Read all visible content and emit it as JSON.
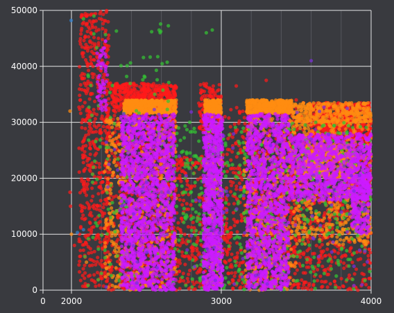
{
  "chart_data": {
    "type": "scatter",
    "title": "",
    "xlabel": "",
    "ylabel": "",
    "xlim": [
      0,
      4000
    ],
    "ylim": [
      0,
      50000
    ],
    "x_major_ticks": [
      0,
      2000,
      3000,
      4000
    ],
    "x_tick_labels": [
      "0",
      "2000",
      "3000",
      "4000"
    ],
    "y_major_ticks": [
      0,
      10000,
      20000,
      30000,
      40000,
      50000
    ],
    "y_tick_labels": [
      "0",
      "10000",
      "20000",
      "30000",
      "40000",
      "50000"
    ],
    "x_minor_gridlines": [
      2200,
      2400,
      2600,
      2800,
      3200,
      3400,
      3600,
      3800
    ],
    "grid": true,
    "legend": "none",
    "colors": {
      "background": "#393a3f",
      "major_grid": "#e8e8e8",
      "minor_grid": "#55575e",
      "tick_label": "#ffffff",
      "red": "#ff1a1a",
      "orange": "#ff8c10",
      "magenta": "#cc1bff",
      "green": "#33c433",
      "purple": "#7a2fd9",
      "blue": "#2f7fd0"
    },
    "series": [
      {
        "color_key": "red",
        "description_points": [
          [
            1900,
            17500
          ],
          [
            1930,
            15000
          ],
          [
            2020,
            8000
          ],
          [
            2060,
            44000
          ],
          [
            2100,
            49000
          ],
          [
            2150,
            48000
          ],
          [
            2180,
            45000
          ],
          [
            2200,
            42000
          ],
          [
            2220,
            40000
          ],
          [
            2260,
            37000
          ],
          [
            2300,
            36500
          ],
          [
            2360,
            35000
          ],
          [
            2420,
            36000
          ],
          [
            2500,
            35500
          ],
          [
            2580,
            36000
          ],
          [
            2640,
            35000
          ],
          [
            2920,
            36000
          ],
          [
            2980,
            34000
          ],
          [
            3100,
            36500
          ],
          [
            3300,
            37500
          ],
          [
            3500,
            34000
          ],
          [
            3700,
            33500
          ],
          [
            3850,
            33000
          ],
          [
            3950,
            32500
          ],
          [
            2240,
            25000
          ],
          [
            2250,
            12000
          ],
          [
            2260,
            3000
          ],
          [
            2650,
            10000
          ],
          [
            2700,
            20000
          ],
          [
            3880,
            26000
          ],
          [
            3900,
            12000
          ],
          [
            3950,
            8000
          ]
        ],
        "clusters": [
          {
            "x": [
              2050,
              2250
            ],
            "y": [
              500,
              50000
            ],
            "n": 520
          },
          {
            "x": [
              2230,
              2700
            ],
            "y": [
              0,
              37000
            ],
            "n": 700
          },
          {
            "x": [
              2700,
              2900
            ],
            "y": [
              0,
              24000
            ],
            "n": 200
          },
          {
            "x": [
              2850,
              3000
            ],
            "y": [
              28000,
              37000
            ],
            "n": 120
          },
          {
            "x": [
              3000,
              3150
            ],
            "y": [
              0,
              33000
            ],
            "n": 180
          },
          {
            "x": [
              3150,
              3500
            ],
            "y": [
              0,
              33000
            ],
            "n": 380
          },
          {
            "x": [
              3450,
              4000
            ],
            "y": [
              0,
              33500
            ],
            "n": 700
          },
          {
            "x": [
              2280,
              2700
            ],
            "y": [
              32000,
              37000
            ],
            "n": 380
          },
          {
            "x": [
              3600,
              4000
            ],
            "y": [
              27000,
              33500
            ],
            "n": 380
          }
        ]
      },
      {
        "color_key": "orange",
        "description_points": [
          [
            1900,
            32000
          ],
          [
            2000,
            10000
          ],
          [
            2100,
            5000
          ],
          [
            2500,
            33000
          ],
          [
            2950,
            33000
          ],
          [
            3300,
            33000
          ],
          [
            3600,
            32500
          ],
          [
            2400,
            25000
          ],
          [
            2600,
            20000
          ],
          [
            2400,
            3000
          ],
          [
            3400,
            28000
          ],
          [
            3900,
            24000
          ]
        ],
        "clusters": [
          {
            "x": [
              2350,
              2700
            ],
            "y": [
              31600,
              34000
            ],
            "n": 520
          },
          {
            "x": [
              2890,
              3000
            ],
            "y": [
              31600,
              34000
            ],
            "n": 230
          },
          {
            "x": [
              3170,
              3470
            ],
            "y": [
              31600,
              34000
            ],
            "n": 420
          },
          {
            "x": [
              3470,
              4000
            ],
            "y": [
              30000,
              33500
            ],
            "n": 320
          },
          {
            "x": [
              2220,
              2700
            ],
            "y": [
              0,
              31000
            ],
            "n": 520
          },
          {
            "x": [
              2900,
              3000
            ],
            "y": [
              0,
              31000
            ],
            "n": 120
          },
          {
            "x": [
              3150,
              3500
            ],
            "y": [
              0,
              31000
            ],
            "n": 420
          },
          {
            "x": [
              3500,
              4000
            ],
            "y": [
              8000,
              31000
            ],
            "n": 520
          },
          {
            "x": [
              3550,
              3900
            ],
            "y": [
              20000,
              26000
            ],
            "n": 260
          }
        ]
      },
      {
        "color_key": "green",
        "description_points": [
          [
            2940,
            46500
          ],
          [
            2900,
            46000
          ],
          [
            2080,
            48500
          ],
          [
            2150,
            49000
          ],
          [
            2200,
            3000
          ],
          [
            2090,
            6000
          ],
          [
            3900,
            12000
          ]
        ],
        "clusters": [
          {
            "x": [
              2100,
              2700
            ],
            "y": [
              0,
              48000
            ],
            "n": 160
          },
          {
            "x": [
              2700,
              3000
            ],
            "y": [
              0,
              30000
            ],
            "n": 160
          },
          {
            "x": [
              3000,
              3550
            ],
            "y": [
              0,
              30000
            ],
            "n": 200
          },
          {
            "x": [
              3550,
              4000
            ],
            "y": [
              0,
              30000
            ],
            "n": 160
          }
        ]
      },
      {
        "color_key": "magenta",
        "description_points": [
          [
            2450,
            30000
          ],
          [
            2550,
            20000
          ],
          [
            2600,
            5000
          ],
          [
            2940,
            30000
          ],
          [
            2950,
            15000
          ],
          [
            2960,
            500
          ],
          [
            3300,
            30000
          ],
          [
            3250,
            15000
          ],
          [
            3280,
            3000
          ],
          [
            3500,
            22000
          ],
          [
            3800,
            22000
          ],
          [
            3950,
            25000
          ],
          [
            2200,
            42000
          ],
          [
            2180,
            38000
          ]
        ],
        "clusters": [
          {
            "x": [
              2330,
              2690
            ],
            "y": [
              0,
              31500
            ],
            "n": 1500
          },
          {
            "x": [
              2880,
              3010
            ],
            "y": [
              0,
              31500
            ],
            "n": 800
          },
          {
            "x": [
              3170,
              3450
            ],
            "y": [
              0,
              31500
            ],
            "n": 1150
          },
          {
            "x": [
              3450,
              4000
            ],
            "y": [
              16000,
              28000
            ],
            "n": 900
          },
          {
            "x": [
              3870,
              3990
            ],
            "y": [
              10000,
              24000
            ],
            "n": 200
          },
          {
            "x": [
              2170,
              2240
            ],
            "y": [
              32000,
              45000
            ],
            "n": 60
          }
        ]
      },
      {
        "color_key": "purple",
        "description_points": [
          [
            3600,
            41000
          ],
          [
            3650,
            6000
          ]
        ],
        "clusters": [
          {
            "x": [
              2200,
              4000
            ],
            "y": [
              0,
              33000
            ],
            "n": 120
          }
        ]
      },
      {
        "color_key": "blue",
        "description_points": [
          [
            1980,
            48200
          ],
          [
            2040,
            10300
          ],
          [
            2080,
            10800
          ]
        ],
        "clusters": []
      }
    ]
  }
}
